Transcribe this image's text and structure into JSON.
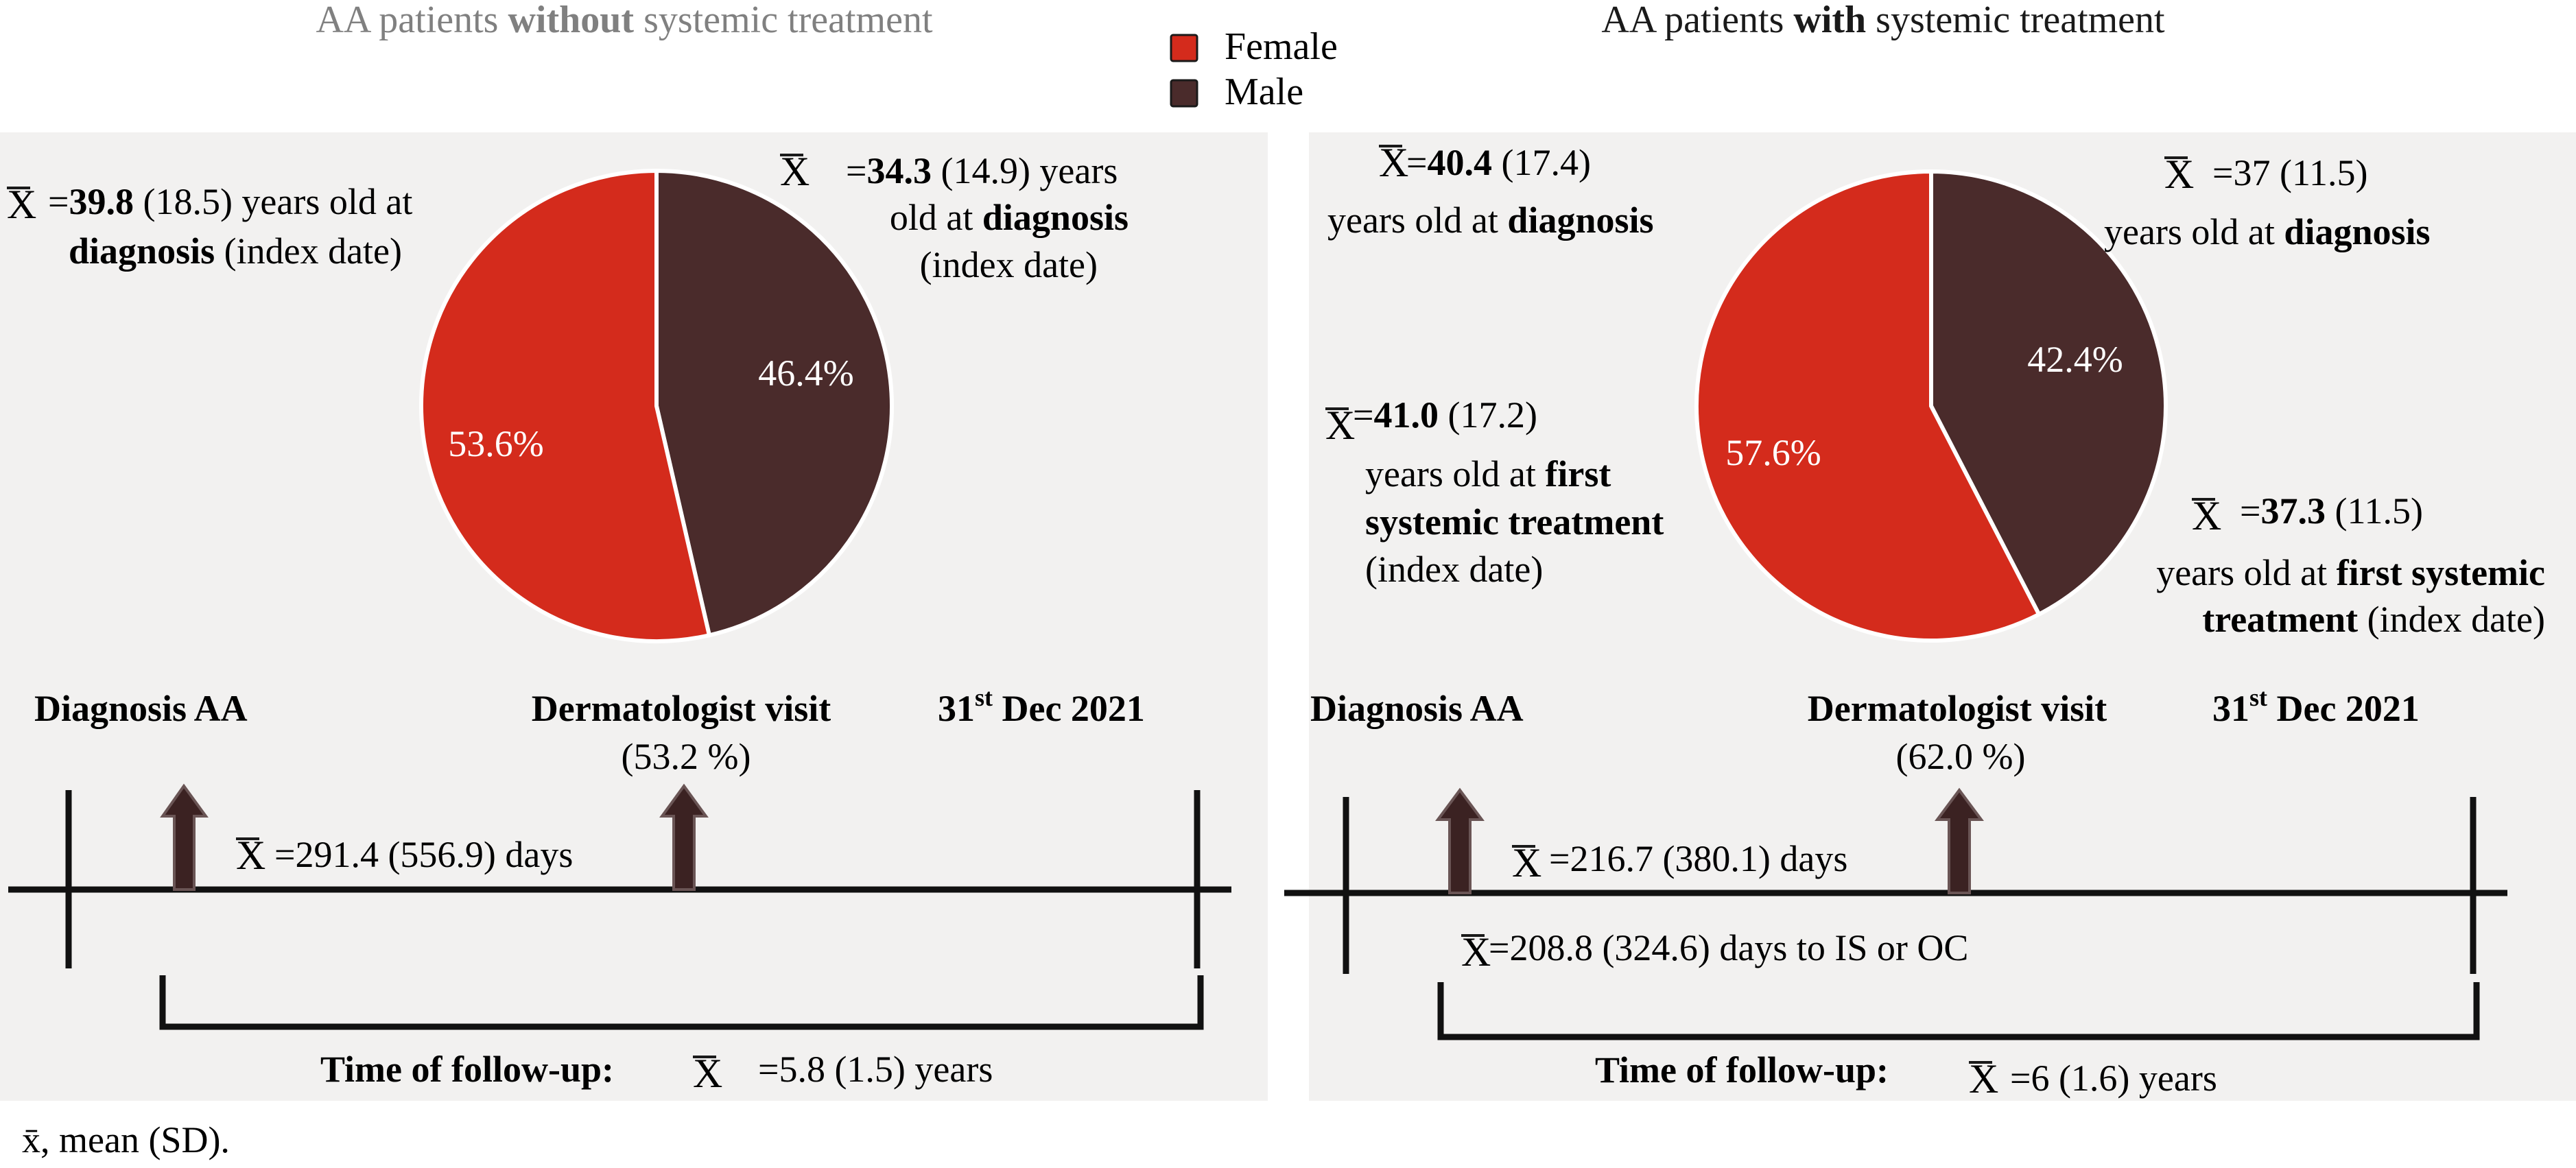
{
  "colors": {
    "female": "#d42b1c",
    "male": "#4a2b2b",
    "panel_bg": "#f2f1f0",
    "arrow": "#3b2222"
  },
  "legend": {
    "female": "Female",
    "male": "Male"
  },
  "footnote": "x̄, mean (SD).",
  "mean_symbol": "X",
  "left": {
    "title_pre": "AA patients ",
    "title_bold": "without",
    "title_post": " systemic treatment",
    "pie": {
      "female_pct": 53.6,
      "male_pct": 46.4,
      "female_label": "53.6%",
      "male_label": "46.4%"
    },
    "female_age": {
      "eq": "=",
      "value": "39.8",
      "sd": " (18.5) years old at",
      "bold2": "diagnosis",
      "rest2": " (index date)"
    },
    "male_age": {
      "eq": "=",
      "value": "34.3",
      "sd": " (14.9) years",
      "line2_pre": "old at ",
      "line2_bold": "diagnosis",
      "line3": "(index date)"
    },
    "timeline": {
      "diagnosis": "Diagnosis AA",
      "derm": "Dermatologist visit",
      "derm_pct": "(53.2 %)",
      "end_day": "31",
      "end_sup": "st",
      "end_rest": " Dec 2021",
      "interval": "=291.4 (556.9) days",
      "followup_label": "Time of follow-up:",
      "followup_value": "=5.8 (1.5) years"
    }
  },
  "right": {
    "title_pre": "AA patients ",
    "title_bold": "with",
    "title_post": " systemic treatment",
    "pie": {
      "female_pct": 57.6,
      "male_pct": 42.4,
      "female_label": "57.6%",
      "male_label": "42.4%"
    },
    "female_diag": {
      "eq": "=",
      "value": "40.4",
      "sd": " (17.4)",
      "line2_pre": "years old at ",
      "line2_bold": "diagnosis"
    },
    "female_first": {
      "eq": "=",
      "value": "41.0",
      "sd": " (17.2)",
      "line2_pre": "years old at ",
      "line2_bold": "first",
      "line3_bold": "systemic treatment",
      "line4": "(index date)"
    },
    "male_diag": {
      "eq": "=",
      "value": "37",
      "sd": " (11.5)",
      "line2_pre": "years old at ",
      "line2_bold": "diagnosis"
    },
    "male_first": {
      "eq": "=",
      "value": "37.3",
      "sd": " (11.5)",
      "line2_pre": "years old at ",
      "line2_bold": "first systemic",
      "line3_bold": "treatment",
      "line3_rest": " (index date)"
    },
    "timeline": {
      "diagnosis": "Diagnosis AA",
      "derm": "Dermatologist visit",
      "derm_pct": "(62.0 %)",
      "end_day": "31",
      "end_sup": "st",
      "end_rest": " Dec 2021",
      "interval": "=216.7 (380.1)  days",
      "interval2": "=208.8 (324.6) days to IS or OC",
      "followup_label": "Time of follow-up:",
      "followup_value": "=6 (1.6) years"
    }
  }
}
